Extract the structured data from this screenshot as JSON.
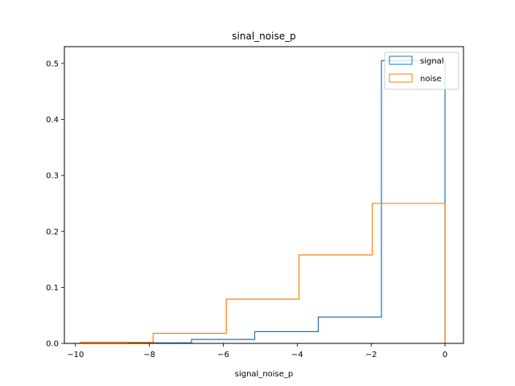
{
  "chart_data": {
    "type": "histogram-step",
    "title": "sinal_noise_p",
    "xlabel": "signal_noise_p",
    "ylabel": "",
    "xlim": [
      -10.3,
      0.5
    ],
    "ylim": [
      0,
      0.53
    ],
    "xticks": [
      -10,
      -8,
      -6,
      -4,
      -2,
      0
    ],
    "xtick_labels": [
      "−10",
      "−8",
      "−6",
      "−4",
      "−2",
      "0"
    ],
    "yticks": [
      0.0,
      0.1,
      0.2,
      0.3,
      0.4,
      0.5
    ],
    "ytick_labels": [
      "0.0",
      "0.1",
      "0.2",
      "0.3",
      "0.4",
      "0.5"
    ],
    "legend_position": "top-right",
    "series": [
      {
        "name": "signal",
        "color": "#1f77b4",
        "edges": [
          -8.58,
          -6.86,
          -5.15,
          -3.43,
          -1.72,
          0.0
        ],
        "values": [
          0.001,
          0.007,
          0.021,
          0.047,
          0.505
        ]
      },
      {
        "name": "noise",
        "color": "#ff7f0e",
        "edges": [
          -9.87,
          -7.9,
          -5.92,
          -3.95,
          -1.97,
          0.0
        ],
        "values": [
          0.002,
          0.018,
          0.079,
          0.158,
          0.25
        ]
      }
    ]
  }
}
